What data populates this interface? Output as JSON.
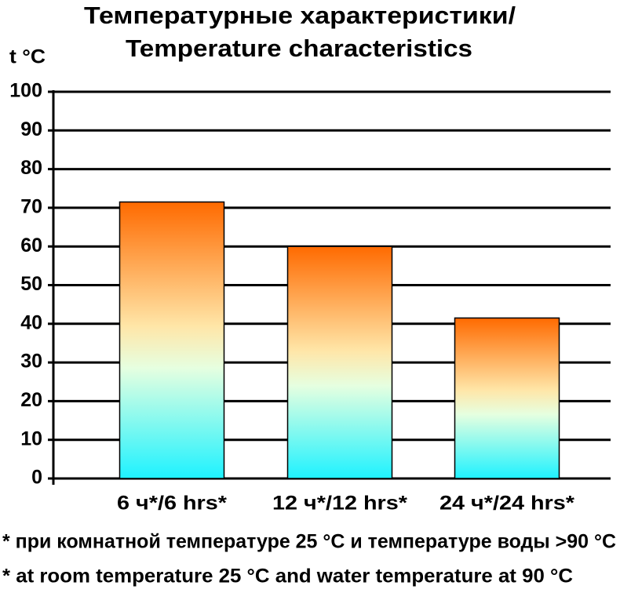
{
  "chart_data": {
    "type": "bar",
    "title": [
      "Температурные характеристики/",
      "Temperature characteristics"
    ],
    "ylabel": "t °C",
    "categories": [
      "6 ч*/6 hrs*",
      "12 ч*/12 hrs*",
      "24 ч*/24 hrs*"
    ],
    "values": [
      71.5,
      60,
      41.5
    ],
    "gradient": [
      "#ff6a00",
      "#ffe6a8",
      "#e6ffe0",
      "#1ef2ff"
    ],
    "ylim": [
      0,
      100
    ],
    "yticks": [
      0,
      10,
      20,
      30,
      40,
      50,
      60,
      70,
      80,
      90,
      100
    ],
    "grid": true,
    "notes": [
      "* при комнатной температуре 25 °C и температуре воды >90 °C",
      "* at room temperature 25 °C and water temperature at 90 °C"
    ]
  }
}
